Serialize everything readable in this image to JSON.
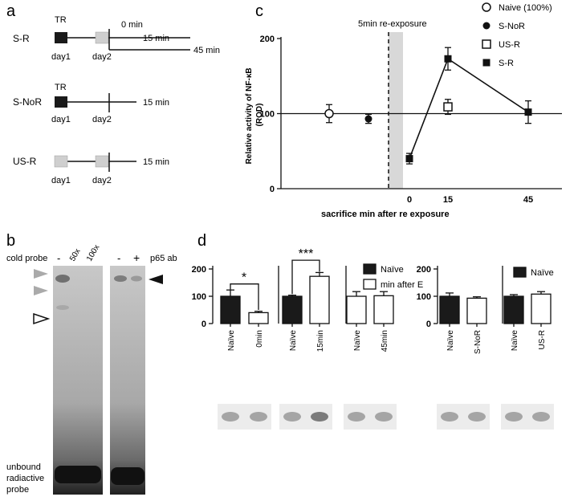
{
  "panels": {
    "a": {
      "letter": "a",
      "rows": [
        {
          "name": "S-R",
          "tr": "TR",
          "day1": "day1",
          "day2": "day2",
          "zero": "0 min",
          "t1": "15 min",
          "t2": "45 min"
        },
        {
          "name": "S-NoR",
          "tr": "TR",
          "day1": "day1",
          "day2": "day2",
          "t1": "15 min"
        },
        {
          "name": "US-R",
          "day1": "day1",
          "day2": "day2",
          "t1": "15 min"
        }
      ],
      "colors": {
        "trained": "#1a1a1a",
        "untrained": "#cfcfcf"
      }
    },
    "b": {
      "letter": "b",
      "cold_probe": "cold probe",
      "lane_labels": [
        "-",
        "50x",
        "100x",
        "-",
        "+"
      ],
      "p65": "p65 ab",
      "unbound": [
        "unbound",
        "radiactive",
        "probe"
      ]
    },
    "c": {
      "letter": "c",
      "reexposure": "5min re-exposure",
      "legend": [
        {
          "label": "Naive (100%)",
          "marker": "open-circle"
        },
        {
          "label": "S-NoR",
          "marker": "filled-circle"
        },
        {
          "label": "US-R",
          "marker": "open-square"
        },
        {
          "label": "S-R",
          "marker": "filled-square"
        }
      ]
    },
    "d": {
      "letter": "d",
      "sig1": "*",
      "sig2": "***",
      "legend1": [
        {
          "label": "Naïve",
          "fill": "#1a1a1a"
        },
        {
          "label": "min after E",
          "fill": "#ffffff"
        }
      ],
      "legend2": [
        {
          "label": "Naïve",
          "fill": "#1a1a1a"
        }
      ]
    }
  },
  "chart_data": [
    {
      "type": "scatter",
      "panel": "c",
      "ylabel": "Relative activity of NF-κB (ROD)",
      "xlabel": "sacrifice min after re exposure",
      "ylim": [
        0,
        200
      ],
      "yticks": [
        "0",
        "100",
        "200"
      ],
      "xticks": [
        "0",
        "15",
        "45"
      ],
      "reference_line": 100,
      "series": [
        {
          "name": "Naive (100%)",
          "marker": "open-circle",
          "points": [
            {
              "x": "pre",
              "y": 100,
              "err": 12
            }
          ]
        },
        {
          "name": "S-NoR",
          "marker": "filled-circle",
          "points": [
            {
              "x": "pre",
              "y": 93,
              "err": 6
            }
          ]
        },
        {
          "name": "US-R",
          "marker": "open-square",
          "points": [
            {
              "x": 15,
              "y": 109,
              "err": 10
            }
          ]
        },
        {
          "name": "S-R",
          "marker": "filled-square",
          "connected": true,
          "points": [
            {
              "x": 0,
              "y": 40,
              "err": 7
            },
            {
              "x": 15,
              "y": 173,
              "err": 15
            },
            {
              "x": 45,
              "y": 102,
              "err": 15
            }
          ]
        }
      ]
    },
    {
      "type": "bar",
      "panel": "d",
      "ylim": [
        0,
        200
      ],
      "yticks": [
        "0",
        "100",
        "200"
      ],
      "groups": [
        {
          "categories": [
            "Naïve",
            "0min"
          ],
          "values": [
            100,
            40
          ],
          "errors": [
            23,
            5
          ],
          "fills": [
            "#1a1a1a",
            "#ffffff"
          ]
        },
        {
          "categories": [
            "Naïve",
            "15min"
          ],
          "values": [
            100,
            173
          ],
          "errors": [
            4,
            14
          ],
          "fills": [
            "#1a1a1a",
            "#ffffff"
          ]
        },
        {
          "categories": [
            "Naïve",
            "45min"
          ],
          "values": [
            100,
            102
          ],
          "errors": [
            17,
            15
          ],
          "fills": [
            "#ffffff",
            "#ffffff"
          ]
        },
        {
          "categories": [
            "Naïve",
            "S-NoR"
          ],
          "values": [
            100,
            93
          ],
          "errors": [
            12,
            5
          ],
          "fills": [
            "#1a1a1a",
            "#ffffff"
          ]
        },
        {
          "categories": [
            "Naïve",
            "US-R"
          ],
          "values": [
            100,
            108
          ],
          "errors": [
            6,
            9
          ],
          "fills": [
            "#1a1a1a",
            "#ffffff"
          ]
        }
      ]
    }
  ]
}
